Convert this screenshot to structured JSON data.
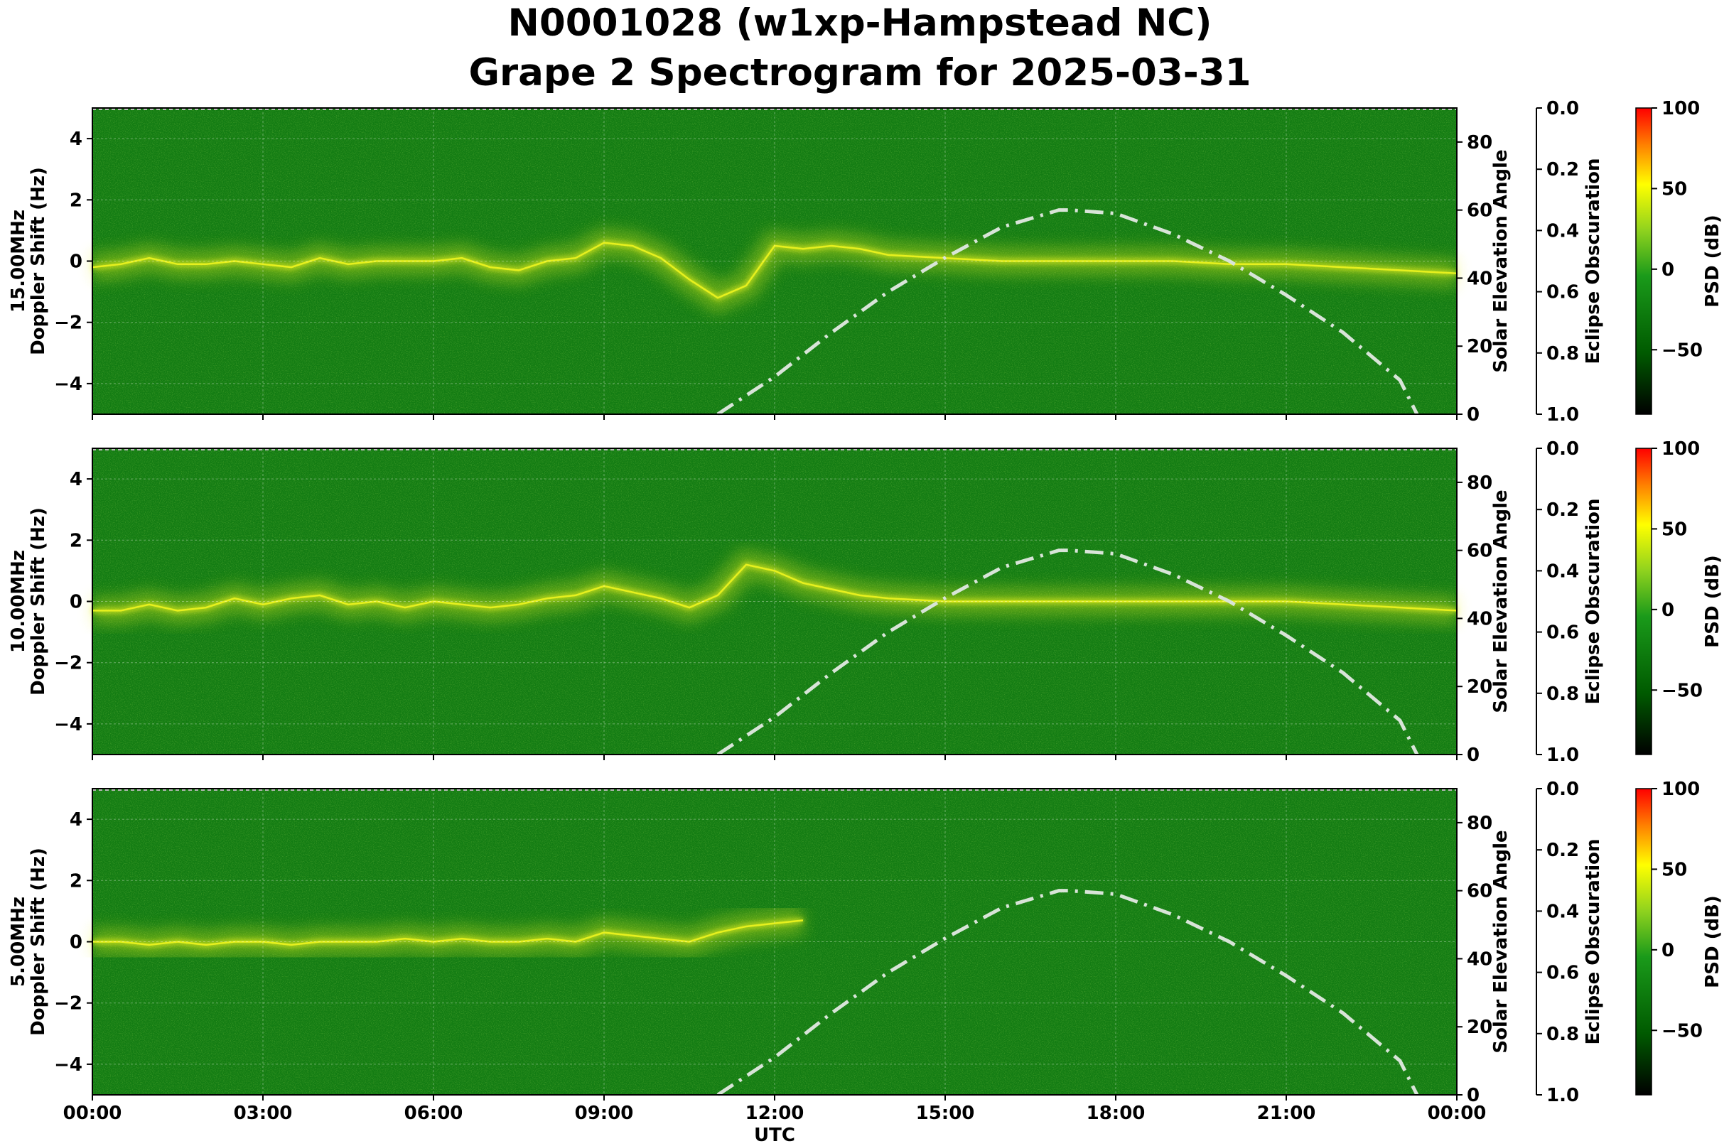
{
  "title_line1": "N0001028 (w1xp-Hampstead NC)",
  "title_line2": "Grape 2 Spectrogram for 2025-03-31",
  "xlabel": "UTC",
  "x_ticks": [
    "00:00",
    "03:00",
    "06:00",
    "09:00",
    "12:00",
    "15:00",
    "18:00",
    "21:00",
    "00:00"
  ],
  "doppler_ticks": [
    "4",
    "2",
    "0",
    "−2",
    "−4"
  ],
  "elevation_ticks": [
    "80",
    "60",
    "40",
    "20",
    "0"
  ],
  "obscuration_ticks": [
    "0.0",
    "0.2",
    "0.4",
    "0.6",
    "0.8",
    "1.0"
  ],
  "psd_ticks": [
    "100",
    "50",
    "0",
    "−50"
  ],
  "ylabel_left_2": "Doppler Shift (Hz)",
  "ylabel_right_1": "Solar Elevation Angle",
  "ylabel_right_2": "Eclipse Obscuration",
  "ylabel_colorbar": "PSD (dB)",
  "colors": {
    "background_green": "#137c13",
    "trace_yellow": "#e6f01e",
    "elevation_curve": "#d8e4d8",
    "colormap": [
      "#000000",
      "#006400",
      "#1fa01f",
      "#b4dc1e",
      "#ffff00",
      "#ff6400",
      "#ff0000"
    ]
  },
  "chart_data": [
    {
      "type": "heatmap",
      "panel": "15.00MHz",
      "ylabel_line1": "15.00MHz",
      "ylabel_line2": "Doppler Shift (Hz)",
      "xlim_utc_hours": [
        0,
        24
      ],
      "ylim_hz": [
        -5,
        5
      ],
      "elevation_ylim_deg": [
        0,
        90
      ],
      "obscuration_ylim": [
        1.0,
        0.0
      ],
      "psd_ylim_db": [
        -90,
        100
      ],
      "grid": true,
      "doppler_trace": {
        "utc_hours": [
          0,
          0.5,
          1,
          1.5,
          2,
          2.5,
          3,
          3.5,
          4,
          4.5,
          5,
          5.5,
          6,
          6.5,
          7,
          7.5,
          8,
          8.5,
          9,
          9.5,
          10,
          10.5,
          11,
          11.5,
          12,
          12.5,
          13,
          13.5,
          14,
          15,
          16,
          17,
          18,
          19,
          20,
          21,
          22,
          23,
          24
        ],
        "doppler_hz": [
          -0.2,
          -0.1,
          0.1,
          -0.1,
          -0.1,
          0.0,
          -0.1,
          -0.2,
          0.1,
          -0.1,
          0.0,
          0.0,
          0.0,
          0.1,
          -0.2,
          -0.3,
          0.0,
          0.1,
          0.6,
          0.5,
          0.1,
          -0.6,
          -1.2,
          -0.8,
          0.5,
          0.4,
          0.5,
          0.4,
          0.2,
          0.1,
          0.0,
          0.0,
          0.0,
          0.0,
          -0.1,
          -0.1,
          -0.2,
          -0.3,
          -0.4
        ]
      },
      "solar_elevation": {
        "utc_hours": [
          11,
          12,
          13,
          14,
          15,
          16,
          17,
          17.2,
          18,
          19,
          20,
          21,
          22,
          23,
          23.3
        ],
        "elevation_deg": [
          0,
          11,
          24,
          36,
          46,
          55,
          60,
          60,
          59,
          53,
          45,
          35,
          24,
          10,
          0
        ]
      }
    },
    {
      "type": "heatmap",
      "panel": "10.00MHz",
      "ylabel_line1": "10.00MHz",
      "ylabel_line2": "Doppler Shift (Hz)",
      "xlim_utc_hours": [
        0,
        24
      ],
      "ylim_hz": [
        -5,
        5
      ],
      "elevation_ylim_deg": [
        0,
        90
      ],
      "obscuration_ylim": [
        1.0,
        0.0
      ],
      "psd_ylim_db": [
        -90,
        100
      ],
      "grid": true,
      "doppler_trace": {
        "utc_hours": [
          0,
          0.5,
          1,
          1.5,
          2,
          2.5,
          3,
          3.5,
          4,
          4.5,
          5,
          5.5,
          6,
          6.5,
          7,
          7.5,
          8,
          8.5,
          9,
          9.5,
          10,
          10.5,
          11,
          11.5,
          12,
          12.5,
          13,
          13.5,
          14,
          15,
          16,
          17,
          18,
          19,
          20,
          21,
          22,
          23,
          24
        ],
        "doppler_hz": [
          -0.3,
          -0.3,
          -0.1,
          -0.3,
          -0.2,
          0.1,
          -0.1,
          0.1,
          0.2,
          -0.1,
          0.0,
          -0.2,
          0.0,
          -0.1,
          -0.2,
          -0.1,
          0.1,
          0.2,
          0.5,
          0.3,
          0.1,
          -0.2,
          0.2,
          1.2,
          1.0,
          0.6,
          0.4,
          0.2,
          0.1,
          0.0,
          0.0,
          0.0,
          0.0,
          0.0,
          0.0,
          0.0,
          -0.1,
          -0.2,
          -0.3
        ]
      },
      "solar_elevation": {
        "utc_hours": [
          11,
          12,
          13,
          14,
          15,
          16,
          17,
          17.2,
          18,
          19,
          20,
          21,
          22,
          23,
          23.3
        ],
        "elevation_deg": [
          0,
          11,
          24,
          36,
          46,
          55,
          60,
          60,
          59,
          53,
          45,
          35,
          24,
          10,
          0
        ]
      }
    },
    {
      "type": "heatmap",
      "panel": "5.00MHz",
      "ylabel_line1": "5.00MHz",
      "ylabel_line2": "Doppler Shift (Hz)",
      "xlim_utc_hours": [
        0,
        24
      ],
      "ylim_hz": [
        -5,
        5
      ],
      "elevation_ylim_deg": [
        0,
        90
      ],
      "obscuration_ylim": [
        1.0,
        0.0
      ],
      "psd_ylim_db": [
        -90,
        100
      ],
      "grid": true,
      "doppler_trace": {
        "utc_hours": [
          0,
          0.5,
          1,
          1.5,
          2,
          2.5,
          3,
          3.5,
          4,
          4.5,
          5,
          5.5,
          6,
          6.5,
          7,
          7.5,
          8,
          8.5,
          9,
          9.5,
          10,
          10.5,
          11,
          11.5,
          12,
          12.5
        ],
        "doppler_hz": [
          0.0,
          0.0,
          -0.1,
          0.0,
          -0.1,
          0.0,
          0.0,
          -0.1,
          0.0,
          0.0,
          0.0,
          0.1,
          0.0,
          0.1,
          0.0,
          0.0,
          0.1,
          0.0,
          0.3,
          0.2,
          0.1,
          0.0,
          0.3,
          0.5,
          0.6,
          0.7
        ]
      },
      "solar_elevation": {
        "utc_hours": [
          11,
          12,
          13,
          14,
          15,
          16,
          17,
          17.2,
          18,
          19,
          20,
          21,
          22,
          23,
          23.3
        ],
        "elevation_deg": [
          0,
          11,
          24,
          36,
          46,
          55,
          60,
          60,
          59,
          53,
          45,
          35,
          24,
          10,
          0
        ]
      }
    }
  ]
}
